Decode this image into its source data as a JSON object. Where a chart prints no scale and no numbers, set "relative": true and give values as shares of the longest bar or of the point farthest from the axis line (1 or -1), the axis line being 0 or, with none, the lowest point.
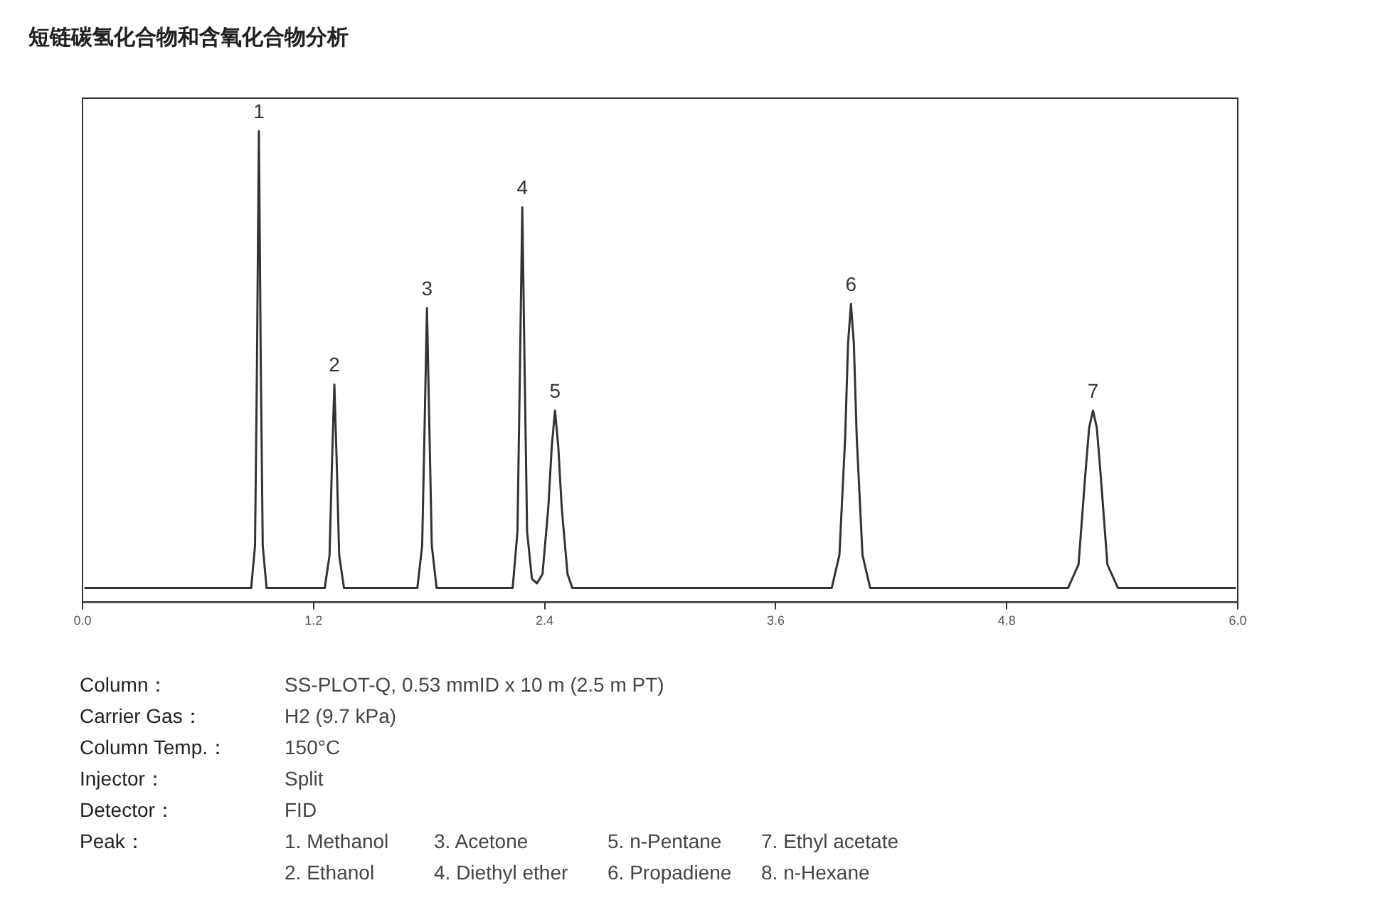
{
  "chart_data": {
    "type": "line",
    "title": "短链碳氢化合物和含氧化合物分析",
    "relative": true,
    "color": "#333333",
    "xlim": [
      0,
      6
    ],
    "xticks": [
      {
        "value": 0,
        "label": "0.0"
      },
      {
        "value": 1.2,
        "label": "1.2"
      },
      {
        "value": 2.4,
        "label": "2.4"
      },
      {
        "value": 3.6,
        "label": "3.6"
      },
      {
        "value": 4.8,
        "label": "4.8"
      },
      {
        "value": 6,
        "label": "6.0"
      }
    ],
    "x": [
      0.01,
      0.876,
      0.896,
      0.906,
      0.916,
      0.926,
      0.936,
      0.956,
      1.258,
      1.283,
      1.296,
      1.308,
      1.32,
      1.333,
      1.358,
      1.739,
      1.764,
      1.777,
      1.789,
      1.801,
      1.814,
      1.839,
      2.234,
      2.259,
      2.272,
      2.284,
      2.296,
      2.309,
      2.334,
      2.36,
      2.389,
      2.419,
      2.437,
      2.454,
      2.471,
      2.489,
      2.519,
      2.544,
      3.891,
      3.931,
      3.961,
      3.976,
      3.991,
      4.006,
      4.021,
      4.051,
      4.091,
      5.118,
      5.173,
      5.208,
      5.228,
      5.248,
      5.268,
      5.288,
      5.323,
      5.378,
      5.99
    ],
    "values": [
      0.03,
      0.03,
      0.12,
      0.5,
      1,
      0.5,
      0.12,
      0.03,
      0.03,
      0.1,
      0.3,
      0.462,
      0.3,
      0.1,
      0.03,
      0.03,
      0.12,
      0.38,
      0.624,
      0.38,
      0.12,
      0.03,
      0.03,
      0.15,
      0.5,
      0.838,
      0.5,
      0.15,
      0.05,
      0.04,
      0.06,
      0.2,
      0.33,
      0.407,
      0.33,
      0.2,
      0.06,
      0.03,
      0.03,
      0.1,
      0.35,
      0.55,
      0.633,
      0.55,
      0.35,
      0.1,
      0.03,
      0.03,
      0.08,
      0.27,
      0.37,
      0.407,
      0.37,
      0.27,
      0.08,
      0.03,
      0.03
    ],
    "marker": "none",
    "annotations": [
      {
        "text": "1",
        "x": 0.916,
        "y": 1
      },
      {
        "text": "2",
        "x": 1.308,
        "y": 0.462
      },
      {
        "text": "3",
        "x": 1.789,
        "y": 0.624
      },
      {
        "text": "4",
        "x": 2.284,
        "y": 0.838
      },
      {
        "text": "5",
        "x": 2.454,
        "y": 0.407
      },
      {
        "text": "6",
        "x": 3.991,
        "y": 0.633
      },
      {
        "text": "7",
        "x": 5.248,
        "y": 0.407
      },
      "Column：",
      "SS-PLOT-Q, 0.53 mmID x 10 m (2.5 m PT)",
      "Carrier Gas：",
      "H2 (9.7 kPa)",
      "Column Temp.：",
      "150°C",
      "Injector：",
      "Split",
      "Detector：",
      "FID",
      "Peak：",
      "1. Methanol",
      "3. Acetone",
      "5. n-Pentane",
      "7. Ethyl acetate",
      "2. Ethanol",
      "4. Diethyl ether",
      "6. Propadiene",
      "8. n-Hexane"
    ]
  }
}
